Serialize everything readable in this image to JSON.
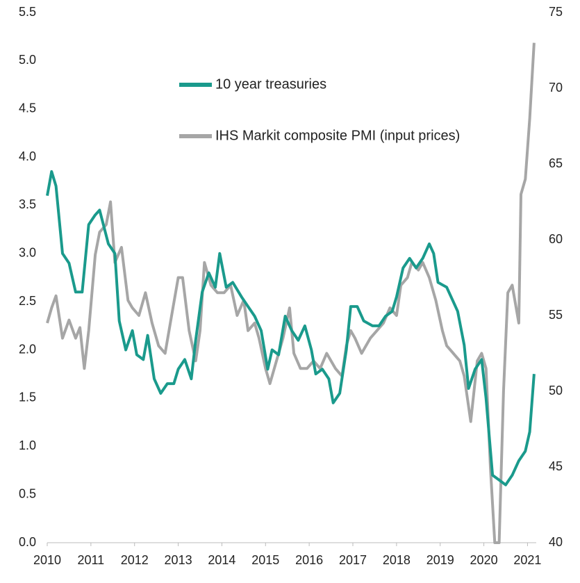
{
  "chart_data": {
    "type": "line",
    "series": [
      {
        "name": "10 year treasuries",
        "color": "#1a9a8c",
        "axis": "y",
        "x": [
          2010.0,
          2010.1,
          2010.2,
          2010.35,
          2010.5,
          2010.65,
          2010.8,
          2010.95,
          2011.1,
          2011.2,
          2011.4,
          2011.55,
          2011.65,
          2011.8,
          2011.95,
          2012.05,
          2012.2,
          2012.3,
          2012.45,
          2012.6,
          2012.75,
          2012.9,
          2013.0,
          2013.15,
          2013.3,
          2013.4,
          2013.55,
          2013.7,
          2013.85,
          2013.95,
          2014.1,
          2014.25,
          2014.45,
          2014.6,
          2014.75,
          2014.9,
          2015.05,
          2015.15,
          2015.3,
          2015.45,
          2015.6,
          2015.75,
          2015.9,
          2016.05,
          2016.15,
          2016.3,
          2016.45,
          2016.55,
          2016.7,
          2016.85,
          2016.95,
          2017.1,
          2017.25,
          2017.45,
          2017.6,
          2017.75,
          2017.9,
          2018.0,
          2018.15,
          2018.3,
          2018.45,
          2018.6,
          2018.75,
          2018.85,
          2018.95,
          2019.15,
          2019.3,
          2019.4,
          2019.55,
          2019.65,
          2019.8,
          2019.95,
          2020.05,
          2020.2,
          2020.35,
          2020.5,
          2020.65,
          2020.8,
          2020.95,
          2021.05,
          2021.15
        ],
        "values": [
          3.6,
          3.85,
          3.7,
          3.0,
          2.9,
          2.6,
          2.6,
          3.3,
          3.4,
          3.45,
          3.1,
          3.0,
          2.3,
          2.0,
          2.2,
          1.95,
          1.9,
          2.15,
          1.7,
          1.55,
          1.65,
          1.65,
          1.8,
          1.9,
          1.7,
          2.1,
          2.6,
          2.8,
          2.65,
          3.0,
          2.65,
          2.7,
          2.55,
          2.45,
          2.35,
          2.2,
          1.8,
          2.0,
          1.95,
          2.35,
          2.2,
          2.1,
          2.25,
          2.0,
          1.75,
          1.8,
          1.7,
          1.45,
          1.55,
          2.0,
          2.45,
          2.45,
          2.3,
          2.25,
          2.25,
          2.35,
          2.4,
          2.55,
          2.85,
          2.95,
          2.85,
          2.95,
          3.1,
          3.0,
          2.7,
          2.65,
          2.5,
          2.4,
          2.05,
          1.6,
          1.8,
          1.9,
          1.5,
          0.7,
          0.65,
          0.6,
          0.7,
          0.85,
          0.95,
          1.15,
          1.75
        ]
      },
      {
        "name": "IHS Markit composite PMI (input prices)",
        "color": "#a6a6a6",
        "axis": "y2",
        "x": [
          2010.0,
          2010.1,
          2010.2,
          2010.35,
          2010.5,
          2010.65,
          2010.75,
          2010.85,
          2010.95,
          2011.1,
          2011.2,
          2011.35,
          2011.45,
          2011.55,
          2011.7,
          2011.85,
          2011.95,
          2012.1,
          2012.25,
          2012.4,
          2012.55,
          2012.7,
          2012.85,
          2013.0,
          2013.1,
          2013.25,
          2013.4,
          2013.5,
          2013.6,
          2013.75,
          2013.9,
          2014.05,
          2014.2,
          2014.35,
          2014.5,
          2014.6,
          2014.75,
          2014.85,
          2015.0,
          2015.1,
          2015.25,
          2015.4,
          2015.55,
          2015.65,
          2015.8,
          2015.95,
          2016.1,
          2016.25,
          2016.4,
          2016.6,
          2016.75,
          2016.85,
          2016.95,
          2017.05,
          2017.2,
          2017.4,
          2017.55,
          2017.7,
          2017.85,
          2018.0,
          2018.1,
          2018.25,
          2018.35,
          2018.5,
          2018.6,
          2018.75,
          2018.9,
          2019.05,
          2019.15,
          2019.3,
          2019.45,
          2019.55,
          2019.7,
          2019.85,
          2019.95,
          2020.05,
          2020.15,
          2020.25,
          2020.35,
          2020.45,
          2020.55,
          2020.65,
          2020.8,
          2020.85,
          2020.95,
          2021.05,
          2021.15
        ],
        "values": [
          54.5,
          55.5,
          56.3,
          53.5,
          54.7,
          53.5,
          54.2,
          51.5,
          54,
          59,
          60.5,
          61,
          62.5,
          58.5,
          59.5,
          56,
          55.5,
          55,
          56.5,
          54.5,
          53,
          52.5,
          55,
          57.5,
          57.5,
          54,
          52,
          54,
          58.5,
          57,
          56.5,
          56.5,
          57,
          55,
          56,
          54,
          54.5,
          53.5,
          51.5,
          50.5,
          52,
          53.5,
          55.5,
          52.5,
          51.5,
          51.5,
          52,
          51.5,
          52.5,
          51.5,
          51,
          53,
          54,
          53.5,
          52.5,
          53.5,
          54,
          54.5,
          55.5,
          55,
          57,
          57.5,
          58.5,
          58,
          58.5,
          57.5,
          56,
          54,
          53,
          52.5,
          52,
          51,
          48,
          52,
          52.5,
          51.5,
          45,
          40,
          40,
          50,
          56.5,
          57,
          54.5,
          63,
          64,
          68,
          73
        ]
      }
    ],
    "xlim": [
      2010,
      2021.2
    ],
    "xticks": [
      2010,
      2011,
      2012,
      2013,
      2014,
      2015,
      2016,
      2017,
      2018,
      2019,
      2020,
      2021
    ],
    "ylim": [
      0,
      5.5
    ],
    "yticks": [
      {
        "value": 0,
        "label": "0.0"
      },
      {
        "value": 0.5,
        "label": "0.5"
      },
      {
        "value": 1,
        "label": "1.0"
      },
      {
        "value": 1.5,
        "label": "1.5"
      },
      {
        "value": 2,
        "label": "2.0"
      },
      {
        "value": 2.5,
        "label": "2.5"
      },
      {
        "value": 3,
        "label": "3.0"
      },
      {
        "value": 3.5,
        "label": "3.5"
      },
      {
        "value": 4,
        "label": "4.0"
      },
      {
        "value": 4.5,
        "label": "4.5"
      },
      {
        "value": 5,
        "label": "5.0"
      },
      {
        "value": 5.5,
        "label": "5.5"
      }
    ],
    "y2lim": [
      40,
      75
    ],
    "y2ticks": [
      40,
      45,
      50,
      55,
      60,
      65,
      70,
      75
    ],
    "legend": "top-center"
  }
}
